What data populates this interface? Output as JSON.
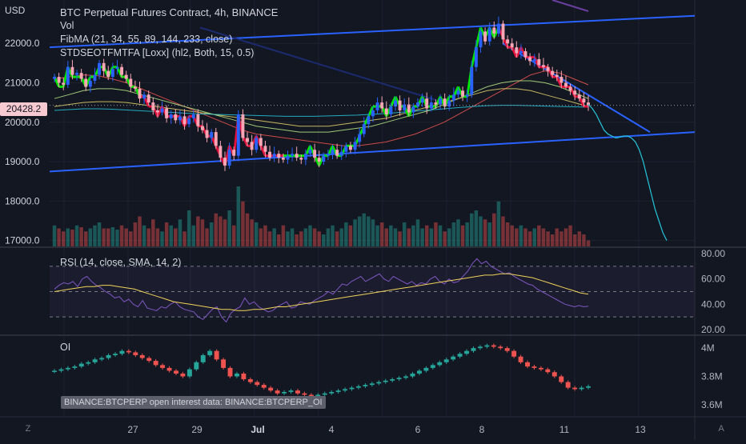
{
  "header": {
    "currency": "USD",
    "title": "BTC Perpetual Futures Contract, 4h, BINANCE",
    "indicators": [
      "Vol",
      "FibMA (21, 34, 55, 89, 144, 233, close)",
      "STDSEOTFMTFA [Loxx] (hl2, Both, 15, 0.5)"
    ]
  },
  "current_price": "20428.2",
  "price_axis": [
    "22000.0",
    "21000.0",
    "20000.0",
    "19000.0",
    "18000.0",
    "17000.0"
  ],
  "rsi_panel": {
    "label": "RSI (14, close, SMA, 14, 2)",
    "ticks": [
      "80.00",
      "60.00",
      "40.00",
      "20.00"
    ]
  },
  "oi_panel": {
    "label": "OI",
    "ticks": [
      "4M",
      "3.8M",
      "3.6M"
    ],
    "note": "BINANCE:BTCPERP open interest data: BINANCE:BTCPERP_OI"
  },
  "time_axis": [
    "27",
    "29",
    "Jul",
    "4",
    "6",
    "8",
    "11",
    "13"
  ],
  "buttons": {
    "left": "Z",
    "right": "A"
  },
  "colors": {
    "background": "#131722",
    "up": "#26a69a",
    "down": "#ef5350",
    "channel": "#2962ff",
    "rsi": "#7e57c2",
    "rsi_ma": "#f0d35a"
  },
  "chart_data": {
    "type": "candlestick",
    "symbol": "BTC Perpetual Futures Contract",
    "timeframe": "4h",
    "exchange": "BINANCE",
    "y_unit": "USD",
    "ylim": [
      16850,
      23100
    ],
    "last_price": 20428.2,
    "candles_close": [
      21150,
      21000,
      20950,
      21400,
      21200,
      21250,
      21100,
      20900,
      21050,
      21200,
      21500,
      21300,
      21150,
      21350,
      21400,
      21200,
      21100,
      20900,
      20850,
      20600,
      20700,
      20500,
      20300,
      20250,
      20350,
      20100,
      20200,
      20050,
      20150,
      19950,
      20100,
      20200,
      19900,
      19800,
      19600,
      19750,
      19400,
      19100,
      18900,
      19300,
      19150,
      20200,
      19600,
      19500,
      19300,
      19600,
      19400,
      19250,
      19100,
      19200,
      19100,
      19050,
      19150,
      19200,
      19100,
      19050,
      19200,
      19300,
      19100,
      19000,
      19150,
      19200,
      19300,
      19150,
      19250,
      19400,
      19300,
      19500,
      19700,
      19950,
      20150,
      20300,
      20500,
      20350,
      20200,
      20400,
      20550,
      20300,
      20450,
      20250,
      20400,
      20500,
      20600,
      20350,
      20500,
      20450,
      20600,
      20400,
      20550,
      20700,
      20800,
      20650,
      20700,
      21400,
      21900,
      22300,
      22050,
      22400,
      22250,
      22500,
      22100,
      22000,
      21900,
      21750,
      21800,
      21650,
      21550,
      21600,
      21450,
      21400,
      21300,
      21200,
      21150,
      21000,
      20900,
      20800,
      20700,
      20600,
      20500,
      20428
    ],
    "volume_relative": [
      0.35,
      0.3,
      0.25,
      0.3,
      0.28,
      0.35,
      0.32,
      0.25,
      0.3,
      0.35,
      0.4,
      0.3,
      0.3,
      0.32,
      0.28,
      0.35,
      0.3,
      0.25,
      0.4,
      0.5,
      0.35,
      0.3,
      0.45,
      0.3,
      0.25,
      0.4,
      0.35,
      0.3,
      0.45,
      0.25,
      0.6,
      0.35,
      0.5,
      0.45,
      0.3,
      0.4,
      0.55,
      0.5,
      0.45,
      0.6,
      0.35,
      1.0,
      0.75,
      0.55,
      0.45,
      0.4,
      0.3,
      0.35,
      0.25,
      0.3,
      0.2,
      0.35,
      0.25,
      0.3,
      0.2,
      0.25,
      0.3,
      0.35,
      0.3,
      0.25,
      0.2,
      0.3,
      0.35,
      0.25,
      0.3,
      0.4,
      0.35,
      0.45,
      0.5,
      0.55,
      0.5,
      0.45,
      0.35,
      0.4,
      0.3,
      0.35,
      0.3,
      0.25,
      0.4,
      0.3,
      0.35,
      0.45,
      0.3,
      0.35,
      0.3,
      0.4,
      0.35,
      0.25,
      0.3,
      0.4,
      0.45,
      0.35,
      0.4,
      0.55,
      0.6,
      0.5,
      0.45,
      0.4,
      0.55,
      0.75,
      0.5,
      0.4,
      0.35,
      0.3,
      0.35,
      0.3,
      0.25,
      0.3,
      0.35,
      0.3,
      0.25,
      0.2,
      0.3,
      0.25,
      0.3,
      0.35,
      0.2,
      0.25,
      0.2,
      0.1
    ],
    "rsi": [
      52,
      55,
      57,
      56,
      58,
      54,
      60,
      62,
      58,
      55,
      53,
      50,
      48,
      45,
      46,
      42,
      44,
      40,
      38,
      43,
      37,
      36,
      35,
      38,
      37,
      40,
      42,
      38,
      36,
      35,
      34,
      30,
      28,
      32,
      36,
      38,
      30,
      26,
      33,
      36,
      38,
      45,
      40,
      42,
      38,
      36,
      34,
      35,
      38,
      40,
      42,
      37,
      38,
      42,
      41,
      40,
      43,
      45,
      47,
      50,
      48,
      52,
      56,
      55,
      58,
      60,
      62,
      58,
      60,
      62,
      64,
      60,
      58,
      62,
      60,
      58,
      56,
      58,
      55,
      57,
      56,
      60,
      62,
      58,
      56,
      60,
      57,
      58,
      62,
      66,
      72,
      76,
      72,
      74,
      70,
      68,
      66,
      64,
      65,
      62,
      60,
      58,
      56,
      55,
      52,
      50,
      48,
      46,
      44,
      42,
      40,
      39,
      38,
      39,
      38,
      38.5
    ],
    "rsi_ma": [
      50,
      51,
      52,
      53,
      54,
      54,
      55,
      55,
      54,
      53,
      52,
      50,
      48,
      46,
      44,
      42,
      41,
      40,
      39,
      38,
      37,
      36,
      36,
      35,
      35,
      36,
      36,
      37,
      38,
      38,
      39,
      40,
      41,
      42,
      43,
      44,
      45,
      46,
      47,
      48,
      49,
      50,
      51,
      52,
      53,
      54,
      55,
      56,
      57,
      58,
      59,
      60,
      61,
      62,
      63,
      63,
      64,
      64,
      63,
      62,
      61,
      59,
      57,
      55,
      53,
      51,
      49,
      48
    ],
    "rsi_ylim": [
      20,
      80
    ],
    "rsi_levels": [
      70,
      50,
      30
    ],
    "oi_close": [
      3.84,
      3.85,
      3.86,
      3.87,
      3.89,
      3.9,
      3.92,
      3.93,
      3.95,
      3.96,
      3.98,
      3.97,
      3.95,
      3.93,
      3.91,
      3.88,
      3.86,
      3.84,
      3.82,
      3.8,
      3.85,
      3.9,
      3.95,
      3.98,
      3.92,
      3.86,
      3.8,
      3.82,
      3.78,
      3.76,
      3.74,
      3.72,
      3.7,
      3.68,
      3.69,
      3.7,
      3.68,
      3.67,
      3.66,
      3.67,
      3.68,
      3.69,
      3.7,
      3.71,
      3.72,
      3.73,
      3.74,
      3.75,
      3.76,
      3.77,
      3.78,
      3.79,
      3.8,
      3.82,
      3.84,
      3.86,
      3.88,
      3.9,
      3.92,
      3.94,
      3.96,
      3.98,
      4.0,
      4.01,
      4.02,
      4.01,
      4.0,
      3.98,
      3.94,
      3.9,
      3.87,
      3.86,
      3.85,
      3.83,
      3.8,
      3.76,
      3.72,
      3.71,
      3.72,
      3.73
    ],
    "oi_ylim": [
      3.52,
      4.08
    ],
    "moving_averages": [
      {
        "color": "#ef5350",
        "values": [
          21100,
          21150,
          21200,
          21180,
          21100,
          21000,
          20850,
          20700,
          20550,
          20400,
          20250,
          20100,
          19950,
          19800,
          19700,
          19650,
          19600,
          19550,
          19500,
          19450,
          19400,
          19400,
          19450,
          19500,
          19600,
          19700,
          19850,
          20000,
          20200,
          20400,
          20600,
          20800,
          21000,
          21200,
          21300,
          21250,
          21100,
          20950
        ]
      },
      {
        "color": "#b8e986",
        "values": [
          20600,
          20700,
          20800,
          20850,
          20850,
          20800,
          20700,
          20600,
          20500,
          20400,
          20300,
          20200,
          20100,
          20000,
          19900,
          19850,
          19800,
          19750,
          19750,
          19750,
          19800,
          19850,
          19900,
          20000,
          20100,
          20200,
          20300,
          20450,
          20600,
          20750,
          20900,
          21000,
          21050,
          21050,
          21000,
          20900,
          20750,
          20600
        ]
      },
      {
        "color": "#e6d36b",
        "values": [
          20400,
          20450,
          20500,
          20520,
          20520,
          20500,
          20450,
          20400,
          20350,
          20300,
          20250,
          20200,
          20150,
          20100,
          20050,
          20000,
          19950,
          19900,
          19900,
          19900,
          19950,
          20000,
          20050,
          20100,
          20200,
          20300,
          20400,
          20500,
          20600,
          20700,
          20800,
          20850,
          20850,
          20800,
          20700,
          20600,
          20500,
          20400
        ]
      },
      {
        "color": "#26c6da",
        "values": [
          20300,
          20320,
          20340,
          20340,
          20330,
          20310,
          20290,
          20270,
          20250,
          20230,
          20210,
          20200,
          20190,
          20180,
          20170,
          20160,
          20150,
          20150,
          20150,
          20160,
          20170,
          20180,
          20200,
          20220,
          20250,
          20280,
          20310,
          20340,
          20370,
          20400,
          20420,
          20430,
          20430,
          20420,
          20410,
          20400,
          20390,
          20380
        ]
      }
    ],
    "trend_channel": {
      "upper": {
        "from": [
          "2022-06-25",
          21900
        ],
        "to": [
          "2022-07-14",
          22700
        ]
      },
      "lower": {
        "from": [
          "2022-06-25",
          18750
        ],
        "to": [
          "2022-07-14",
          19750
        ]
      },
      "falling": {
        "from": [
          "2022-07-08",
          22000
        ],
        "to": [
          "2022-07-12",
          19700
        ]
      }
    },
    "projection": [
      20450,
      20350,
      20200,
      20000,
      19800,
      19700,
      19650,
      19600,
      19620,
      19650,
      19650,
      19600,
      19500,
      19300,
      19000,
      18600,
      18200,
      17800,
      17500,
      17200,
      17000
    ]
  }
}
